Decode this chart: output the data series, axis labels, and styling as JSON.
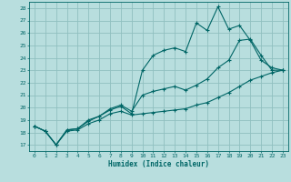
{
  "xlabel": "Humidex (Indice chaleur)",
  "bg_color": "#b8dede",
  "grid_color": "#90c0c0",
  "line_color": "#006666",
  "xlim": [
    -0.5,
    23.5
  ],
  "ylim": [
    16.5,
    28.5
  ],
  "xticks": [
    0,
    1,
    2,
    3,
    4,
    5,
    6,
    7,
    8,
    9,
    10,
    11,
    12,
    13,
    14,
    15,
    16,
    17,
    18,
    19,
    20,
    21,
    22,
    23
  ],
  "yticks": [
    17,
    18,
    19,
    20,
    21,
    22,
    23,
    24,
    25,
    26,
    27,
    28
  ],
  "line1_x": [
    0,
    1,
    2,
    3,
    4,
    5,
    6,
    7,
    8,
    9,
    10,
    11,
    12,
    13,
    14,
    15,
    16,
    17,
    18,
    19,
    20,
    21,
    22,
    23
  ],
  "line1_y": [
    18.5,
    18.1,
    17.0,
    18.1,
    18.2,
    18.7,
    19.0,
    19.5,
    19.7,
    19.4,
    19.5,
    19.6,
    19.7,
    19.8,
    19.9,
    20.2,
    20.4,
    20.8,
    21.2,
    21.7,
    22.2,
    22.5,
    22.8,
    23.0
  ],
  "line2_x": [
    0,
    1,
    2,
    3,
    4,
    5,
    6,
    7,
    8,
    9,
    10,
    11,
    12,
    13,
    14,
    15,
    16,
    17,
    18,
    19,
    20,
    21,
    22,
    23
  ],
  "line2_y": [
    18.5,
    18.1,
    17.0,
    18.2,
    18.3,
    19.0,
    19.3,
    19.8,
    20.1,
    19.5,
    23.0,
    24.2,
    24.6,
    24.8,
    24.5,
    26.8,
    26.2,
    28.1,
    26.3,
    26.6,
    25.4,
    23.8,
    23.2,
    23.0
  ],
  "line3_x": [
    0,
    1,
    2,
    3,
    4,
    5,
    6,
    7,
    8,
    9,
    10,
    11,
    12,
    13,
    14,
    15,
    16,
    17,
    18,
    19,
    20,
    21,
    22,
    23
  ],
  "line3_y": [
    18.5,
    18.1,
    17.0,
    18.2,
    18.3,
    18.9,
    19.3,
    19.9,
    20.2,
    19.7,
    21.0,
    21.3,
    21.5,
    21.7,
    21.4,
    21.8,
    22.3,
    23.2,
    23.8,
    25.4,
    25.5,
    24.2,
    23.0,
    23.0
  ]
}
